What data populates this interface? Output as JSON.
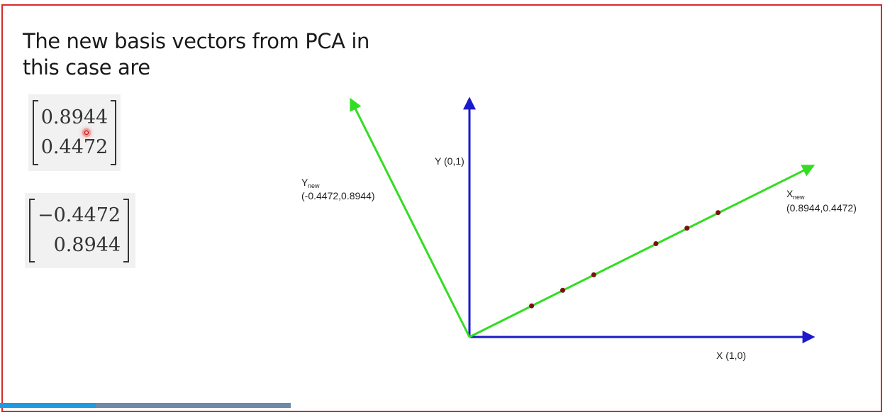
{
  "slide": {
    "title": "The new basis vectors from PCA in this case are"
  },
  "vectors": [
    {
      "components": [
        "0.8944",
        "0.4472"
      ]
    },
    {
      "components": [
        "−0.4472",
        "0.8944"
      ]
    }
  ],
  "diagram": {
    "x_axis_label": "X (1,0)",
    "y_axis_label": "Y (0,1)",
    "x_new_label_main": "X",
    "x_new_label_sub": "new",
    "x_new_coords": "(0.8944,0.4472)",
    "y_new_label_main": "Y",
    "y_new_label_sub": "new",
    "y_new_coords": "(-0.4472,0.8944)",
    "points_along_x_new": [
      2,
      3,
      4,
      6,
      7,
      8
    ],
    "colors": {
      "original_axes": "#1a1acc",
      "new_axes": "#33dd22",
      "points": "#7a1010",
      "frame": "#d42b2b"
    }
  },
  "video_progress": {
    "fraction": 0.33
  }
}
